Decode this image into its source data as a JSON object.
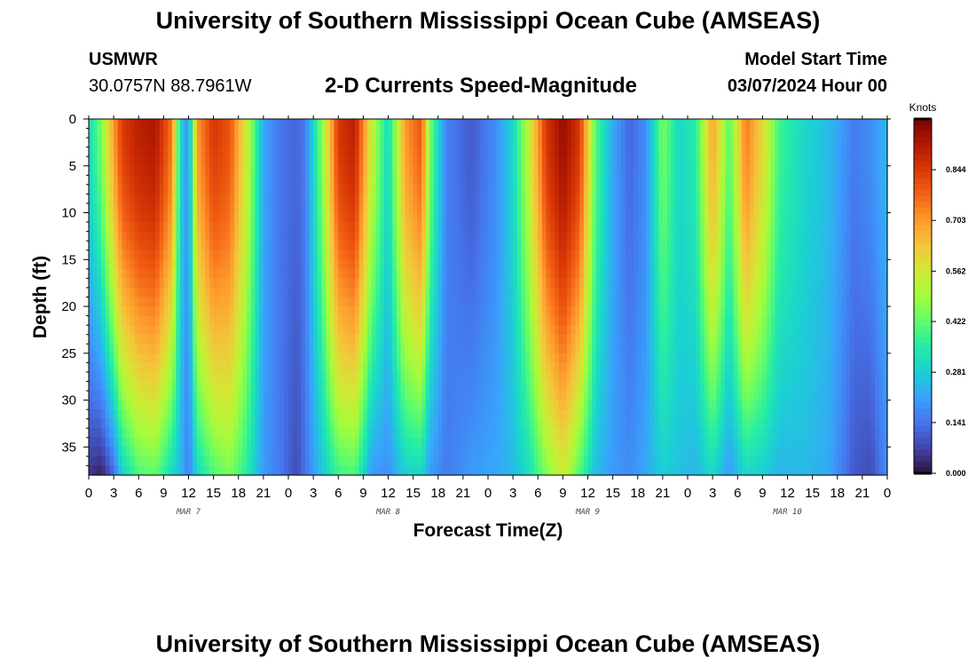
{
  "header": {
    "title": "University of Southern Mississippi Ocean Cube (AMSEAS)",
    "station": "USMWR",
    "location": "30.0757N  88.7961W",
    "subtitle": "2-D Currents Speed-Magnitude",
    "model_start_label": "Model Start Time",
    "model_start_value": "03/07/2024 Hour 00"
  },
  "footer": {
    "title": "University of Southern Mississippi Ocean Cube (AMSEAS)"
  },
  "chart_data": {
    "type": "heatmap",
    "title": "2-D Currents Speed-Magnitude",
    "xlabel": "Forecast Time(Z)",
    "ylabel": "Depth (ft)",
    "x_hours_range": [
      0,
      96
    ],
    "x_tick_labels": [
      "0",
      "3",
      "6",
      "9",
      "12",
      "15",
      "18",
      "21",
      "0",
      "3",
      "6",
      "9",
      "12",
      "15",
      "18",
      "21",
      "0",
      "3",
      "6",
      "9",
      "12",
      "15",
      "18",
      "21",
      "0",
      "3",
      "6",
      "9",
      "12",
      "15",
      "18",
      "21",
      "0"
    ],
    "date_labels": [
      {
        "label": "MAR 7",
        "hour": 12
      },
      {
        "label": "MAR 8",
        "hour": 36
      },
      {
        "label": "MAR 9",
        "hour": 60
      },
      {
        "label": "MAR 10",
        "hour": 84
      }
    ],
    "y_range": [
      0,
      38
    ],
    "y_ticks": [
      0,
      5,
      10,
      15,
      20,
      25,
      30,
      35
    ],
    "colorbar": {
      "unit": "Knots",
      "range": [
        0,
        0.985
      ],
      "tick_values": [
        0.0,
        0.141,
        0.281,
        0.422,
        0.562,
        0.703,
        0.844
      ],
      "tick_labels": [
        "0.000",
        "0.141",
        "0.281",
        "0.422",
        "0.562",
        "0.703",
        "0.844"
      ],
      "colormap": [
        "#30123b",
        "#4145ab",
        "#4675ed",
        "#39a2fc",
        "#1bcfd4",
        "#24eca6",
        "#61fc6c",
        "#a4fc3b",
        "#d1e834",
        "#f3c63a",
        "#fe9b2d",
        "#f36315",
        "#d93806",
        "#b11901",
        "#7a0402"
      ]
    },
    "speed_profile_knots": [
      {
        "hour": 0,
        "surface": 0.3,
        "bottom": 0.05
      },
      {
        "hour": 1.5,
        "surface": 0.45,
        "bottom": 0.02
      },
      {
        "hour": 3,
        "surface": 0.7,
        "bottom": 0.12
      },
      {
        "hour": 4,
        "surface": 0.84,
        "bottom": 0.28
      },
      {
        "hour": 6,
        "surface": 0.9,
        "bottom": 0.4
      },
      {
        "hour": 8,
        "surface": 0.92,
        "bottom": 0.42
      },
      {
        "hour": 10,
        "surface": 0.75,
        "bottom": 0.3
      },
      {
        "hour": 11,
        "surface": 0.3,
        "bottom": 0.25
      },
      {
        "hour": 12,
        "surface": 0.18,
        "bottom": 0.15
      },
      {
        "hour": 13,
        "surface": 0.7,
        "bottom": 0.3
      },
      {
        "hour": 15,
        "surface": 0.85,
        "bottom": 0.4
      },
      {
        "hour": 17,
        "surface": 0.8,
        "bottom": 0.45
      },
      {
        "hour": 19,
        "surface": 0.55,
        "bottom": 0.35
      },
      {
        "hour": 21,
        "surface": 0.22,
        "bottom": 0.2
      },
      {
        "hour": 23,
        "surface": 0.14,
        "bottom": 0.15
      },
      {
        "hour": 25,
        "surface": 0.12,
        "bottom": 0.08
      },
      {
        "hour": 26,
        "surface": 0.15,
        "bottom": 0.14
      },
      {
        "hour": 28,
        "surface": 0.45,
        "bottom": 0.26
      },
      {
        "hour": 30,
        "surface": 0.85,
        "bottom": 0.38
      },
      {
        "hour": 32,
        "surface": 0.9,
        "bottom": 0.4
      },
      {
        "hour": 34,
        "surface": 0.55,
        "bottom": 0.2
      },
      {
        "hour": 36,
        "surface": 0.3,
        "bottom": 0.18
      },
      {
        "hour": 38,
        "surface": 0.7,
        "bottom": 0.28
      },
      {
        "hour": 40,
        "surface": 0.8,
        "bottom": 0.3
      },
      {
        "hour": 41,
        "surface": 0.45,
        "bottom": 0.2
      },
      {
        "hour": 43,
        "surface": 0.16,
        "bottom": 0.15
      },
      {
        "hour": 46,
        "surface": 0.1,
        "bottom": 0.2
      },
      {
        "hour": 49,
        "surface": 0.18,
        "bottom": 0.22
      },
      {
        "hour": 51,
        "surface": 0.3,
        "bottom": 0.25
      },
      {
        "hour": 53,
        "surface": 0.55,
        "bottom": 0.32
      },
      {
        "hour": 55,
        "surface": 0.85,
        "bottom": 0.45
      },
      {
        "hour": 57,
        "surface": 0.95,
        "bottom": 0.55
      },
      {
        "hour": 59,
        "surface": 0.85,
        "bottom": 0.4
      },
      {
        "hour": 61,
        "surface": 0.4,
        "bottom": 0.25
      },
      {
        "hour": 63,
        "surface": 0.22,
        "bottom": 0.2
      },
      {
        "hour": 65,
        "surface": 0.12,
        "bottom": 0.18
      },
      {
        "hour": 67,
        "surface": 0.18,
        "bottom": 0.22
      },
      {
        "hour": 69,
        "surface": 0.45,
        "bottom": 0.28
      },
      {
        "hour": 71,
        "surface": 0.3,
        "bottom": 0.26
      },
      {
        "hour": 73,
        "surface": 0.35,
        "bottom": 0.24
      },
      {
        "hour": 75,
        "surface": 0.7,
        "bottom": 0.3
      },
      {
        "hour": 77,
        "surface": 0.4,
        "bottom": 0.2
      },
      {
        "hour": 79,
        "surface": 0.75,
        "bottom": 0.3
      },
      {
        "hour": 81,
        "surface": 0.6,
        "bottom": 0.28
      },
      {
        "hour": 83,
        "surface": 0.38,
        "bottom": 0.24
      },
      {
        "hour": 86,
        "surface": 0.3,
        "bottom": 0.25
      },
      {
        "hour": 89,
        "surface": 0.25,
        "bottom": 0.22
      },
      {
        "hour": 92,
        "surface": 0.15,
        "bottom": 0.1
      },
      {
        "hour": 94,
        "surface": 0.18,
        "bottom": 0.08
      },
      {
        "hour": 96,
        "surface": 0.25,
        "bottom": 0.18
      }
    ]
  }
}
